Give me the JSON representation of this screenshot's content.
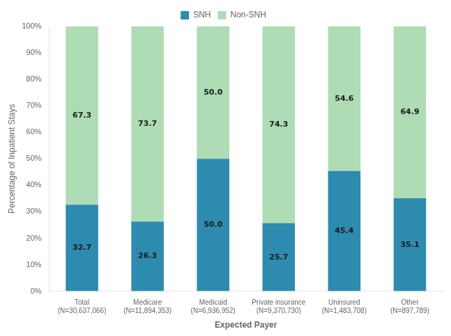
{
  "chart_data": {
    "type": "bar",
    "stacked": true,
    "categories": [
      "Total\n(N=30,637,066)",
      "Medicare\n(N=11,894,353)",
      "Medicaid\n(N=6,936,952)",
      "Private insurance\n(N=9,370,730)",
      "Uninsured\n(N=1,483,708)",
      "Other\n(N=897,789)"
    ],
    "series": [
      {
        "name": "SNH",
        "color": "#2e8bb0",
        "values": [
          32.7,
          26.3,
          50.0,
          25.7,
          45.4,
          35.1
        ],
        "value_labels": [
          "32.7",
          "26.3",
          "50.0",
          "25.7",
          "45.4",
          "35.1"
        ]
      },
      {
        "name": "Non-SNH",
        "color": "#aedcb4",
        "values": [
          67.3,
          73.7,
          50.0,
          74.3,
          54.6,
          64.9
        ],
        "value_labels": [
          "67.3",
          "73.7",
          "50.0",
          "74.3",
          "54.6",
          "64.9"
        ]
      }
    ],
    "xlabel": "Expected Payer",
    "ylabel": "Percentage of Inpatient Stays",
    "ylim": [
      0,
      100
    ],
    "yticks": [
      {
        "value": 0,
        "label": "0%"
      },
      {
        "value": 10,
        "label": "10%"
      },
      {
        "value": 20,
        "label": "20%"
      },
      {
        "value": 30,
        "label": "30%"
      },
      {
        "value": 40,
        "label": "40%"
      },
      {
        "value": 50,
        "label": "50%"
      },
      {
        "value": 60,
        "label": "60%"
      },
      {
        "value": 70,
        "label": "70%"
      },
      {
        "value": 80,
        "label": "80%"
      },
      {
        "value": 90,
        "label": "90%"
      },
      {
        "value": 100,
        "label": "100%"
      }
    ],
    "grid": false,
    "legend": "top",
    "data_labels": true
  }
}
